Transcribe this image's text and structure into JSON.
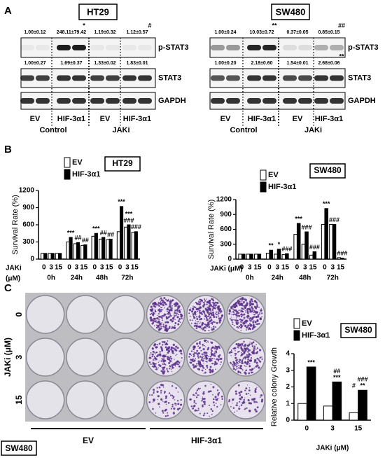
{
  "panel_labels": [
    "A",
    "B",
    "C"
  ],
  "western_blot": [
    {
      "cell_line": "HT29",
      "rows": [
        {
          "label": "p-STAT3",
          "quantification": [
            "1.00±0.12",
            "248.11±79.42",
            "1.19±0.32",
            "1.12±0.57"
          ],
          "significance": [
            null,
            "*",
            null,
            "#"
          ]
        },
        {
          "label": "STAT3",
          "quantification": [
            "1.00±0.27",
            "1.69±0.37",
            "1.33±0.02",
            "1.83±0.01"
          ],
          "significance": [
            null,
            null,
            null,
            null
          ]
        },
        {
          "label": "GAPDH"
        }
      ],
      "lanes": [
        "EV",
        "HIF-3α1",
        "EV",
        "HIF-3α1"
      ],
      "groups": [
        "Control",
        "JAKi"
      ]
    },
    {
      "cell_line": "SW480",
      "rows": [
        {
          "label": "p-STAT3",
          "quantification": [
            "1.00±0.24",
            "10.03±0.72",
            "0.37±0.05",
            "0.85±0.15"
          ],
          "significance": [
            null,
            "**",
            null,
            "##"
          ]
        },
        {
          "label": "STAT3",
          "quantification": [
            "1.00±0.20",
            "2.18±0.60",
            "1.54±0.01",
            "2.68±0.06"
          ],
          "significance": [
            null,
            null,
            null,
            "**"
          ]
        },
        {
          "label": "GAPDH"
        }
      ],
      "lanes": [
        "EV",
        "HIF-3α1",
        "EV",
        "HIF-3α1"
      ],
      "groups": [
        "Control",
        "JAKi"
      ]
    }
  ],
  "chart_data": [
    {
      "type": "bar",
      "title": "HT29",
      "y_label": "Survival Rate (%)",
      "x_label": [
        "JAKi",
        "(μM)"
      ],
      "groups": [
        "0h",
        "24h",
        "48h",
        "72h"
      ],
      "categories": [
        "0",
        "3",
        "15",
        "0",
        "3",
        "15",
        "0",
        "3",
        "15",
        "0",
        "3",
        "15"
      ],
      "series": [
        {
          "name": "EV",
          "color": "#ffffff",
          "values": [
            100,
            100,
            100,
            300,
            270,
            240,
            400,
            350,
            340,
            480,
            560,
            470
          ],
          "annotations": [
            null,
            null,
            null,
            null,
            null,
            null,
            null,
            null,
            null,
            null,
            null,
            null
          ]
        },
        {
          "name": "HIF-3α1",
          "color": "#000000",
          "values": [
            100,
            100,
            100,
            380,
            290,
            250,
            450,
            380,
            350,
            920,
            600,
            480
          ],
          "annotations": [
            null,
            null,
            null,
            [
              "***"
            ],
            [
              "##"
            ],
            [
              "##"
            ],
            [
              "***"
            ],
            [
              "##"
            ],
            [
              "##"
            ],
            [
              "***"
            ],
            [
              "***",
              "###"
            ],
            [
              "###"
            ]
          ]
        }
      ],
      "ylim": [
        0,
        1200
      ],
      "yticks": [
        0,
        300,
        600,
        900,
        1200
      ]
    },
    {
      "type": "bar",
      "title": "SW480",
      "y_label": "Survival Rate (%)",
      "x_label": [
        "JAKi (μM)"
      ],
      "groups": [
        "0h",
        "24h",
        "48h",
        "72h"
      ],
      "categories": [
        "0",
        "3",
        "15",
        "0",
        "3",
        "15",
        "0",
        "3",
        "15",
        "0",
        "3",
        "15"
      ],
      "series": [
        {
          "name": "EV",
          "color": "#ffffff",
          "values": [
            100,
            100,
            100,
            120,
            100,
            90,
            500,
            300,
            80,
            700,
            700,
            30
          ],
          "annotations": [
            null,
            null,
            null,
            null,
            null,
            null,
            null,
            null,
            null,
            null,
            null,
            null
          ]
        },
        {
          "name": "HIF-3α1",
          "color": "#000000",
          "values": [
            100,
            100,
            100,
            180,
            200,
            110,
            720,
            550,
            150,
            1020,
            700,
            20
          ],
          "annotations": [
            null,
            null,
            null,
            [
              "**"
            ],
            [
              "*"
            ],
            [
              "###"
            ],
            [
              "***"
            ],
            [
              "###"
            ],
            [
              "###"
            ],
            [
              "***"
            ],
            [
              "###"
            ],
            [
              "###"
            ]
          ]
        }
      ],
      "ylim": [
        0,
        1200
      ],
      "yticks": [
        0,
        300,
        600,
        900,
        1200
      ]
    },
    {
      "type": "bar",
      "title": "SW480",
      "y_label": "Relative colony Growth",
      "x_label": [
        "JAKi (μM)"
      ],
      "categories": [
        "0",
        "3",
        "15"
      ],
      "series": [
        {
          "name": "EV",
          "color": "#ffffff",
          "values": [
            1.0,
            0.85,
            0.45
          ],
          "annotations": [
            null,
            null,
            [
              "#"
            ]
          ]
        },
        {
          "name": "HIF-3α1",
          "color": "#000000",
          "values": [
            3.2,
            2.3,
            1.8
          ],
          "annotations": [
            [
              "***"
            ],
            [
              "##",
              "***"
            ],
            [
              "###",
              "**"
            ]
          ]
        }
      ],
      "ylim": [
        0,
        4
      ],
      "yticks": [
        0,
        1,
        2,
        3,
        4
      ]
    }
  ],
  "colony_assay": {
    "row_title": "JAKi (μM)",
    "rows": [
      "0",
      "3",
      "15"
    ],
    "columns": [
      "EV",
      "HIF-3α1"
    ],
    "cell_line": "SW480"
  }
}
